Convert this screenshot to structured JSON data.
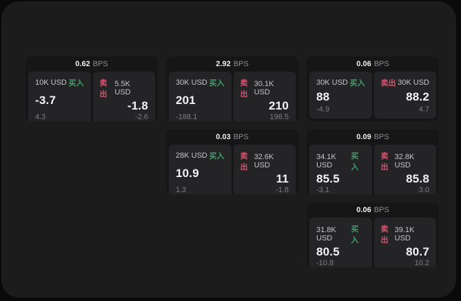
{
  "labels": {
    "bps_unit": "BPS",
    "buy": "买入",
    "sell": "卖出"
  },
  "colors": {
    "outer_bg": "#0a0a0b",
    "panel_bg": "#1c1c1d",
    "card_bg": "#161617",
    "tile_bg": "#242426",
    "buy_accent": "#3ea266",
    "sell_accent": "#d25570",
    "value_text": "#f4f4f5",
    "muted_text": "#7f7f83"
  },
  "cards": [
    {
      "row": 1,
      "col": 1,
      "bps": "0.62",
      "buy": {
        "size": "10K USD",
        "value": "-3.7",
        "delta": "4.3"
      },
      "sell": {
        "size": "5.5K USD",
        "value": "-1.8",
        "delta": "-2.6"
      }
    },
    {
      "row": 1,
      "col": 2,
      "bps": "2.92",
      "buy": {
        "size": "30K USD",
        "value": "201",
        "delta": "-188.1"
      },
      "sell": {
        "size": "30.1K USD",
        "value": "210",
        "delta": "196.5"
      }
    },
    {
      "row": 1,
      "col": 3,
      "bps": "0.06",
      "buy": {
        "size": "30K USD",
        "value": "88",
        "delta": "-4.9"
      },
      "sell": {
        "size": "30K USD",
        "value": "88.2",
        "delta": "4.7"
      }
    },
    {
      "row": 2,
      "col": 2,
      "bps": "0.03",
      "buy": {
        "size": "28K USD",
        "value": "10.9",
        "delta": "1.3"
      },
      "sell": {
        "size": "32.6K USD",
        "value": "11",
        "delta": "-1.8"
      }
    },
    {
      "row": 2,
      "col": 3,
      "bps": "0.09",
      "buy": {
        "size": "34.1K USD",
        "value": "85.5",
        "delta": "-3.1"
      },
      "sell": {
        "size": "32.8K USD",
        "value": "85.8",
        "delta": "3.0"
      }
    },
    {
      "row": 3,
      "col": 3,
      "bps": "0.06",
      "buy": {
        "size": "31.8K USD",
        "value": "80.5",
        "delta": "-10.8"
      },
      "sell": {
        "size": "39.1K USD",
        "value": "80.7",
        "delta": "10.2"
      }
    }
  ]
}
